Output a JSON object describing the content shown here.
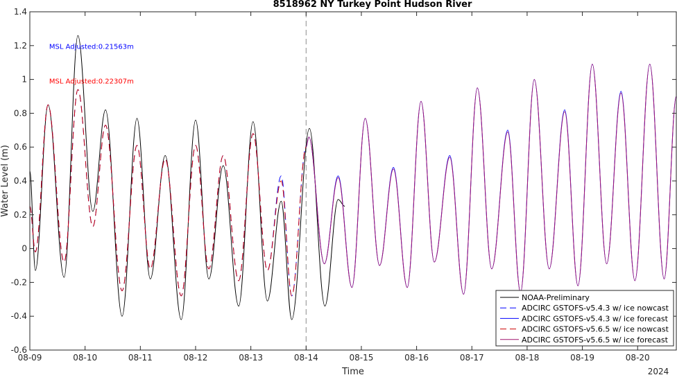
{
  "chart_data": {
    "type": "line",
    "title": "8518962 NY Turkey Point Hudson River",
    "xlabel": "Time",
    "ylabel": "Water Level (m)",
    "year_label": "2024",
    "xlim": [
      0,
      11.7
    ],
    "ylim": [
      -0.6,
      1.4
    ],
    "x_ticks": [
      {
        "x": 0,
        "label": "08-09"
      },
      {
        "x": 1,
        "label": "08-10"
      },
      {
        "x": 2,
        "label": "08-11"
      },
      {
        "x": 3,
        "label": "08-12"
      },
      {
        "x": 4,
        "label": "08-13"
      },
      {
        "x": 5,
        "label": "08-14"
      },
      {
        "x": 6,
        "label": "08-15"
      },
      {
        "x": 7,
        "label": "08-16"
      },
      {
        "x": 8,
        "label": "08-17"
      },
      {
        "x": 9,
        "label": "08-18"
      },
      {
        "x": 10,
        "label": "08-19"
      },
      {
        "x": 11,
        "label": "08-20"
      }
    ],
    "y_ticks": [
      {
        "v": -0.6,
        "label": "-0.6"
      },
      {
        "v": -0.4,
        "label": "-0.4"
      },
      {
        "v": -0.2,
        "label": "-0.2"
      },
      {
        "v": 0,
        "label": "0"
      },
      {
        "v": 0.2,
        "label": "0.2"
      },
      {
        "v": 0.4,
        "label": "0.4"
      },
      {
        "v": 0.6,
        "label": "0.6"
      },
      {
        "v": 0.8,
        "label": "0.8"
      },
      {
        "v": 1.0,
        "label": "1"
      },
      {
        "v": 1.2,
        "label": "1.2"
      },
      {
        "v": 1.4,
        "label": "1.4"
      }
    ],
    "vline_x": 5.0,
    "annotations": [
      {
        "text": "MSL Adjusted:0.21563m",
        "color": "#0000ff",
        "x": 0.35,
        "y": 1.18
      },
      {
        "text": "MSL Adjusted:0.22307m",
        "color": "#ff0000",
        "x": 0.35,
        "y": 0.975
      }
    ],
    "legend_position": "bottom-right",
    "grid": false,
    "series": [
      {
        "name": "NOAA-Preliminary",
        "color": "#000000",
        "style": "solid",
        "x": [
          0.0,
          0.1,
          0.33,
          0.62,
          0.87,
          1.14,
          1.37,
          1.67,
          1.94,
          2.18,
          2.45,
          2.74,
          3.0,
          3.24,
          3.5,
          3.78,
          4.04,
          4.3,
          4.55,
          4.74,
          5.06,
          5.34,
          5.58,
          5.7
        ],
        "y": [
          0.46,
          -0.13,
          0.85,
          -0.17,
          1.26,
          0.22,
          0.82,
          -0.4,
          0.77,
          -0.18,
          0.55,
          -0.42,
          0.76,
          -0.18,
          0.49,
          -0.34,
          0.75,
          -0.31,
          0.28,
          -0.42,
          0.71,
          -0.34,
          0.29,
          0.25
        ]
      },
      {
        "name": "ADCIRC GSTOFS-v5.4.3 w/ ice nowcast",
        "color": "#0000ff",
        "style": "dashed",
        "x": [
          0.0,
          0.1,
          0.33,
          0.62,
          0.87,
          1.14,
          1.37,
          1.67,
          1.94,
          2.18,
          2.45,
          2.74,
          3.0,
          3.24,
          3.5,
          3.78,
          4.04,
          4.3,
          4.55,
          4.74,
          5.0
        ],
        "y": [
          0.25,
          -0.02,
          0.85,
          -0.08,
          0.94,
          0.13,
          0.73,
          -0.25,
          0.61,
          -0.12,
          0.53,
          -0.28,
          0.61,
          -0.12,
          0.55,
          -0.19,
          0.68,
          -0.13,
          0.43,
          -0.28,
          0.6
        ]
      },
      {
        "name": "ADCIRC GSTOFS-v5.4.3 w/ ice forecast",
        "color": "#0000ff",
        "style": "solid",
        "x": [
          5.0,
          5.05,
          5.33,
          5.58,
          5.83,
          6.07,
          6.33,
          6.58,
          6.83,
          7.08,
          7.32,
          7.6,
          7.85,
          8.1,
          8.36,
          8.65,
          8.88,
          9.13,
          9.4,
          9.68,
          9.92,
          10.18,
          10.44,
          10.7,
          10.95,
          11.22,
          11.48,
          11.7
        ],
        "y": [
          0.6,
          0.66,
          -0.09,
          0.43,
          -0.23,
          0.77,
          -0.1,
          0.48,
          -0.23,
          0.87,
          -0.08,
          0.55,
          -0.27,
          0.95,
          -0.12,
          0.7,
          -0.26,
          1.0,
          -0.12,
          0.82,
          -0.22,
          1.09,
          -0.09,
          0.93,
          -0.19,
          1.09,
          -0.18,
          0.9
        ]
      },
      {
        "name": "ADCIRC GSTOFS-v5.6.5 w/ ice nowcast",
        "color": "#cc0000",
        "style": "dashed",
        "x": [
          0.0,
          0.1,
          0.33,
          0.62,
          0.87,
          1.14,
          1.37,
          1.67,
          1.94,
          2.18,
          2.45,
          2.74,
          3.0,
          3.24,
          3.5,
          3.78,
          4.04,
          4.3,
          4.55,
          4.74,
          5.0
        ],
        "y": [
          0.25,
          -0.02,
          0.85,
          -0.08,
          0.94,
          0.13,
          0.73,
          -0.25,
          0.61,
          -0.12,
          0.53,
          -0.28,
          0.61,
          -0.12,
          0.55,
          -0.19,
          0.68,
          -0.13,
          0.4,
          -0.28,
          0.6
        ]
      },
      {
        "name": "ADCIRC GSTOFS-v5.6.5 w/ ice forecast",
        "color": "#a0146e",
        "style": "solid",
        "x": [
          5.0,
          5.05,
          5.33,
          5.58,
          5.83,
          6.07,
          6.33,
          6.58,
          6.83,
          7.08,
          7.32,
          7.6,
          7.85,
          8.1,
          8.36,
          8.65,
          8.88,
          9.13,
          9.4,
          9.68,
          9.92,
          10.18,
          10.44,
          10.7,
          10.95,
          11.22,
          11.48,
          11.7
        ],
        "y": [
          0.6,
          0.66,
          -0.09,
          0.42,
          -0.23,
          0.77,
          -0.1,
          0.47,
          -0.23,
          0.87,
          -0.08,
          0.54,
          -0.27,
          0.95,
          -0.12,
          0.69,
          -0.26,
          1.0,
          -0.12,
          0.81,
          -0.22,
          1.09,
          -0.09,
          0.92,
          -0.19,
          1.09,
          -0.18,
          0.9
        ]
      }
    ]
  }
}
